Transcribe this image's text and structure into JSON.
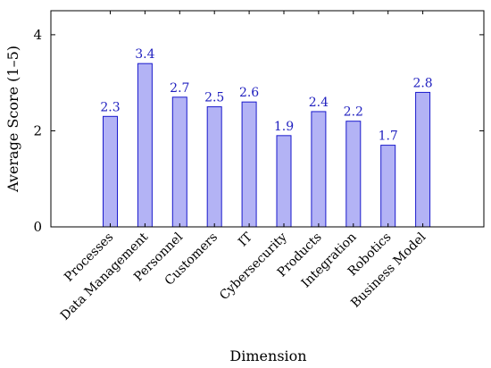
{
  "chart_data": {
    "type": "bar",
    "title": "",
    "xlabel": "Dimension",
    "ylabel": "Average Score (1–5)",
    "categories": [
      "Processes",
      "Data Management",
      "Personnel",
      "Customers",
      "IT",
      "Cybersecurity",
      "Products",
      "Integration",
      "Robotics",
      "Business Model"
    ],
    "values": [
      2.3,
      3.4,
      2.7,
      2.5,
      2.6,
      1.9,
      2.4,
      2.2,
      1.7,
      2.8
    ],
    "value_labels": [
      "2.3",
      "3.4",
      "2.7",
      "2.5",
      "2.6",
      "1.9",
      "2.4",
      "2.2",
      "1.7",
      "2.8"
    ],
    "ylim": [
      0,
      4.5
    ],
    "yticks": [
      0,
      2,
      4
    ],
    "ytick_labels": [
      "0",
      "2",
      "4"
    ],
    "grid": false,
    "legend": "none",
    "colors": {
      "bar_fill": "#b3b3f5",
      "bar_stroke": "#1a1acc",
      "data_label": "#1f1fbf"
    }
  }
}
